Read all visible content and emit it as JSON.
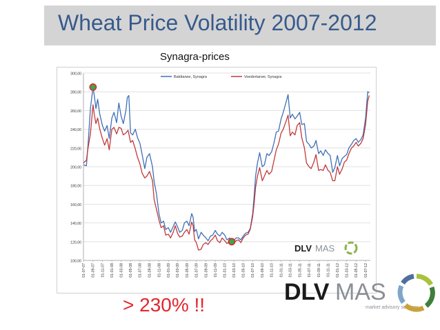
{
  "slide": {
    "title": "Wheat Price Volatility 2007-2012",
    "subtitle": "Synagra-prices",
    "note": "> 230%  !!"
  },
  "logo": {
    "text_dlv": "DLV",
    "text_mas": "MAS",
    "tagline": "market advisory services",
    "color_dlv": "#1a1a1a",
    "color_mas": "#8a8f96",
    "ring_colors": [
      "#a8c23c",
      "#3f7f3a",
      "#4f6fa0",
      "#7fa6c9",
      "#c8a23a"
    ]
  },
  "colors": {
    "title": "#375a8c",
    "title_bar": "#d4d4d4",
    "note": "#e3262e",
    "baking": "#3e6fb5",
    "feed": "#c0383a",
    "marker_high": "#3aa84a",
    "marker_low": "#3aa84a",
    "marker_border": "#e3262e"
  },
  "chart_data": {
    "type": "line",
    "ylim": [
      100,
      300
    ],
    "yticks": [
      "100,00",
      "120,00",
      "140,00",
      "160,00",
      "180,00",
      "200,00",
      "220,00",
      "240,00",
      "260,00",
      "280,00",
      "300,00"
    ],
    "xticks": [
      "01-07-07",
      "01-09-07",
      "01-11-07",
      "01-01-08",
      "01-03-08",
      "01-05-08",
      "01-07-08",
      "01-09-08",
      "01-11-08",
      "01-01-09",
      "01-03-09",
      "01-05-09",
      "01-07-09",
      "01-09-09",
      "01-11-09",
      "01-01-10",
      "01-03-10",
      "01-05-10",
      "01-07-10",
      "01-09-10",
      "01-11-10",
      "01-01-11",
      "01-03-11",
      "01-05-11",
      "01-07-11",
      "01-09-11",
      "01-11-11",
      "01-01-12",
      "01-03-12",
      "01-05-12",
      "01-07-12"
    ],
    "x_start": "2007-07-01",
    "x_end": "2012-08-01",
    "grid": true,
    "legend_position": "top",
    "series": [
      {
        "name": "Bakttarwe, Synagra",
        "color_key": "baking",
        "points": [
          [
            "2007-07-01",
            202
          ],
          [
            "2007-07-20",
            201
          ],
          [
            "2007-08-01",
            226
          ],
          [
            "2007-08-15",
            262
          ],
          [
            "2007-09-01",
            285
          ],
          [
            "2007-09-10",
            275
          ],
          [
            "2007-09-20",
            262
          ],
          [
            "2007-10-01",
            272
          ],
          [
            "2007-10-15",
            256
          ],
          [
            "2007-11-01",
            244
          ],
          [
            "2007-11-15",
            238
          ],
          [
            "2007-12-01",
            244
          ],
          [
            "2007-12-15",
            230
          ],
          [
            "2008-01-01",
            252
          ],
          [
            "2008-01-15",
            258
          ],
          [
            "2008-02-01",
            247
          ],
          [
            "2008-02-15",
            268
          ],
          [
            "2008-03-01",
            254
          ],
          [
            "2008-03-15",
            246
          ],
          [
            "2008-04-01",
            260
          ],
          [
            "2008-04-10",
            274
          ],
          [
            "2008-04-20",
            276
          ],
          [
            "2008-05-01",
            236
          ],
          [
            "2008-05-15",
            234
          ],
          [
            "2008-06-01",
            240
          ],
          [
            "2008-06-15",
            231
          ],
          [
            "2008-07-01",
            225
          ],
          [
            "2008-07-15",
            213
          ],
          [
            "2008-08-01",
            198
          ],
          [
            "2008-08-15",
            210
          ],
          [
            "2008-09-01",
            214
          ],
          [
            "2008-09-20",
            200
          ],
          [
            "2008-10-01",
            184
          ],
          [
            "2008-10-15",
            172
          ],
          [
            "2008-11-01",
            150
          ],
          [
            "2008-11-15",
            140
          ],
          [
            "2008-12-01",
            142
          ],
          [
            "2008-12-15",
            133
          ],
          [
            "2009-01-01",
            135
          ],
          [
            "2009-01-15",
            130
          ],
          [
            "2009-02-01",
            136
          ],
          [
            "2009-02-15",
            141
          ],
          [
            "2009-03-01",
            136
          ],
          [
            "2009-03-15",
            130
          ],
          [
            "2009-04-01",
            132
          ],
          [
            "2009-04-15",
            140
          ],
          [
            "2009-05-01",
            142
          ],
          [
            "2009-05-15",
            137
          ],
          [
            "2009-06-01",
            150
          ],
          [
            "2009-06-10",
            146
          ],
          [
            "2009-06-20",
            131
          ],
          [
            "2009-07-01",
            133
          ],
          [
            "2009-07-15",
            123
          ],
          [
            "2009-08-01",
            130
          ],
          [
            "2009-08-15",
            127
          ],
          [
            "2009-09-01",
            124
          ],
          [
            "2009-09-15",
            121
          ],
          [
            "2009-10-01",
            126
          ],
          [
            "2009-10-15",
            127
          ],
          [
            "2009-11-01",
            132
          ],
          [
            "2009-11-15",
            128
          ],
          [
            "2009-12-01",
            126
          ],
          [
            "2009-12-15",
            130
          ],
          [
            "2010-01-01",
            127
          ],
          [
            "2010-01-15",
            122
          ],
          [
            "2010-02-01",
            124
          ],
          [
            "2010-02-15",
            121
          ],
          [
            "2010-03-01",
            121
          ],
          [
            "2010-03-15",
            124
          ],
          [
            "2010-04-01",
            124
          ],
          [
            "2010-04-15",
            122
          ],
          [
            "2010-05-01",
            126
          ],
          [
            "2010-05-15",
            129
          ],
          [
            "2010-06-01",
            130
          ],
          [
            "2010-06-15",
            134
          ],
          [
            "2010-07-01",
            150
          ],
          [
            "2010-07-10",
            168
          ],
          [
            "2010-07-20",
            190
          ],
          [
            "2010-08-01",
            204
          ],
          [
            "2010-08-15",
            215
          ],
          [
            "2010-09-01",
            200
          ],
          [
            "2010-09-15",
            202
          ],
          [
            "2010-10-01",
            214
          ],
          [
            "2010-10-15",
            212
          ],
          [
            "2010-11-01",
            216
          ],
          [
            "2010-11-15",
            225
          ],
          [
            "2010-12-01",
            237
          ],
          [
            "2010-12-15",
            238
          ],
          [
            "2011-01-01",
            251
          ],
          [
            "2011-01-15",
            258
          ],
          [
            "2011-02-01",
            268
          ],
          [
            "2011-02-15",
            277
          ],
          [
            "2011-03-01",
            252
          ],
          [
            "2011-03-15",
            256
          ],
          [
            "2011-04-01",
            251
          ],
          [
            "2011-04-15",
            254
          ],
          [
            "2011-05-01",
            258
          ],
          [
            "2011-05-15",
            245
          ],
          [
            "2011-06-01",
            246
          ],
          [
            "2011-06-15",
            227
          ],
          [
            "2011-07-01",
            224
          ],
          [
            "2011-07-15",
            220
          ],
          [
            "2011-08-01",
            222
          ],
          [
            "2011-08-15",
            228
          ],
          [
            "2011-09-01",
            214
          ],
          [
            "2011-09-15",
            217
          ],
          [
            "2011-10-01",
            212
          ],
          [
            "2011-10-15",
            218
          ],
          [
            "2011-11-01",
            214
          ],
          [
            "2011-11-15",
            212
          ],
          [
            "2011-12-01",
            194
          ],
          [
            "2011-12-15",
            199
          ],
          [
            "2012-01-01",
            212
          ],
          [
            "2012-01-15",
            201
          ],
          [
            "2012-02-01",
            209
          ],
          [
            "2012-02-15",
            211
          ],
          [
            "2012-03-01",
            213
          ],
          [
            "2012-03-15",
            220
          ],
          [
            "2012-04-01",
            224
          ],
          [
            "2012-04-15",
            228
          ],
          [
            "2012-05-01",
            230
          ],
          [
            "2012-05-15",
            226
          ],
          [
            "2012-06-01",
            229
          ],
          [
            "2012-06-15",
            234
          ],
          [
            "2012-07-01",
            252
          ],
          [
            "2012-07-15",
            280
          ],
          [
            "2012-07-25",
            279
          ]
        ]
      },
      {
        "name": "Voedertarwe, Synagra",
        "color_key": "feed",
        "points": [
          [
            "2007-07-01",
            204
          ],
          [
            "2007-07-20",
            207
          ],
          [
            "2007-08-01",
            221
          ],
          [
            "2007-08-15",
            235
          ],
          [
            "2007-09-01",
            266
          ],
          [
            "2007-09-10",
            255
          ],
          [
            "2007-09-20",
            246
          ],
          [
            "2007-10-01",
            252
          ],
          [
            "2007-10-15",
            240
          ],
          [
            "2007-11-01",
            230
          ],
          [
            "2007-11-15",
            223
          ],
          [
            "2007-12-01",
            230
          ],
          [
            "2007-12-15",
            218
          ],
          [
            "2008-01-01",
            240
          ],
          [
            "2008-01-15",
            242
          ],
          [
            "2008-02-01",
            235
          ],
          [
            "2008-02-15",
            242
          ],
          [
            "2008-03-01",
            241
          ],
          [
            "2008-03-15",
            234
          ],
          [
            "2008-04-01",
            236
          ],
          [
            "2008-04-15",
            239
          ],
          [
            "2008-05-01",
            226
          ],
          [
            "2008-05-15",
            228
          ],
          [
            "2008-06-01",
            219
          ],
          [
            "2008-06-15",
            210
          ],
          [
            "2008-07-01",
            203
          ],
          [
            "2008-07-15",
            193
          ],
          [
            "2008-08-01",
            188
          ],
          [
            "2008-08-15",
            190
          ],
          [
            "2008-09-01",
            195
          ],
          [
            "2008-09-20",
            185
          ],
          [
            "2008-10-01",
            165
          ],
          [
            "2008-10-15",
            155
          ],
          [
            "2008-11-01",
            143
          ],
          [
            "2008-11-15",
            135
          ],
          [
            "2008-12-01",
            137
          ],
          [
            "2008-12-15",
            127
          ],
          [
            "2009-01-01",
            128
          ],
          [
            "2009-01-15",
            124
          ],
          [
            "2009-02-01",
            130
          ],
          [
            "2009-02-15",
            137
          ],
          [
            "2009-03-01",
            129
          ],
          [
            "2009-03-15",
            125
          ],
          [
            "2009-04-01",
            126
          ],
          [
            "2009-04-15",
            130
          ],
          [
            "2009-05-01",
            133
          ],
          [
            "2009-05-15",
            128
          ],
          [
            "2009-06-01",
            141
          ],
          [
            "2009-06-10",
            137
          ],
          [
            "2009-06-20",
            122
          ],
          [
            "2009-07-01",
            119
          ],
          [
            "2009-07-15",
            111
          ],
          [
            "2009-08-01",
            112
          ],
          [
            "2009-08-15",
            117
          ],
          [
            "2009-09-01",
            119
          ],
          [
            "2009-09-15",
            117
          ],
          [
            "2009-10-01",
            121
          ],
          [
            "2009-10-15",
            123
          ],
          [
            "2009-11-01",
            127
          ],
          [
            "2009-11-15",
            121
          ],
          [
            "2009-12-01",
            119
          ],
          [
            "2009-12-15",
            124
          ],
          [
            "2010-01-01",
            121
          ],
          [
            "2010-01-15",
            118
          ],
          [
            "2010-02-01",
            120
          ],
          [
            "2010-02-15",
            118
          ],
          [
            "2010-03-01",
            118
          ],
          [
            "2010-03-15",
            121
          ],
          [
            "2010-04-01",
            122
          ],
          [
            "2010-04-15",
            119
          ],
          [
            "2010-05-01",
            124
          ],
          [
            "2010-05-15",
            127
          ],
          [
            "2010-06-01",
            128
          ],
          [
            "2010-06-15",
            133
          ],
          [
            "2010-07-01",
            147
          ],
          [
            "2010-07-10",
            160
          ],
          [
            "2010-07-20",
            178
          ],
          [
            "2010-08-01",
            190
          ],
          [
            "2010-08-15",
            199
          ],
          [
            "2010-09-01",
            185
          ],
          [
            "2010-09-15",
            190
          ],
          [
            "2010-10-01",
            196
          ],
          [
            "2010-10-15",
            192
          ],
          [
            "2010-11-01",
            195
          ],
          [
            "2010-11-15",
            206
          ],
          [
            "2010-12-01",
            218
          ],
          [
            "2010-12-15",
            224
          ],
          [
            "2011-01-01",
            236
          ],
          [
            "2011-01-15",
            240
          ],
          [
            "2011-02-01",
            248
          ],
          [
            "2011-02-15",
            255
          ],
          [
            "2011-03-01",
            233
          ],
          [
            "2011-03-15",
            237
          ],
          [
            "2011-04-01",
            234
          ],
          [
            "2011-04-15",
            244
          ],
          [
            "2011-05-01",
            247
          ],
          [
            "2011-05-15",
            231
          ],
          [
            "2011-06-01",
            220
          ],
          [
            "2011-06-15",
            204
          ],
          [
            "2011-07-01",
            200
          ],
          [
            "2011-07-15",
            198
          ],
          [
            "2011-08-01",
            205
          ],
          [
            "2011-08-15",
            213
          ],
          [
            "2011-09-01",
            196
          ],
          [
            "2011-09-15",
            197
          ],
          [
            "2011-10-01",
            196
          ],
          [
            "2011-10-15",
            202
          ],
          [
            "2011-11-01",
            196
          ],
          [
            "2011-11-15",
            194
          ],
          [
            "2011-12-01",
            185
          ],
          [
            "2011-12-15",
            185
          ],
          [
            "2012-01-01",
            200
          ],
          [
            "2012-01-15",
            192
          ],
          [
            "2012-02-01",
            198
          ],
          [
            "2012-02-15",
            205
          ],
          [
            "2012-03-01",
            207
          ],
          [
            "2012-03-15",
            214
          ],
          [
            "2012-04-01",
            220
          ],
          [
            "2012-04-15",
            222
          ],
          [
            "2012-05-01",
            226
          ],
          [
            "2012-05-15",
            222
          ],
          [
            "2012-06-01",
            225
          ],
          [
            "2012-06-15",
            230
          ],
          [
            "2012-07-01",
            245
          ],
          [
            "2012-07-15",
            270
          ],
          [
            "2012-07-25",
            276
          ]
        ]
      }
    ],
    "markers": [
      {
        "date": "2007-09-01",
        "value": 285,
        "color_key": "marker_high"
      },
      {
        "date": "2010-02-15",
        "value": 120,
        "color_key": "marker_low"
      }
    ],
    "inset_logo": {
      "text_dlv": "DLV",
      "text_mas": "MAS"
    }
  }
}
